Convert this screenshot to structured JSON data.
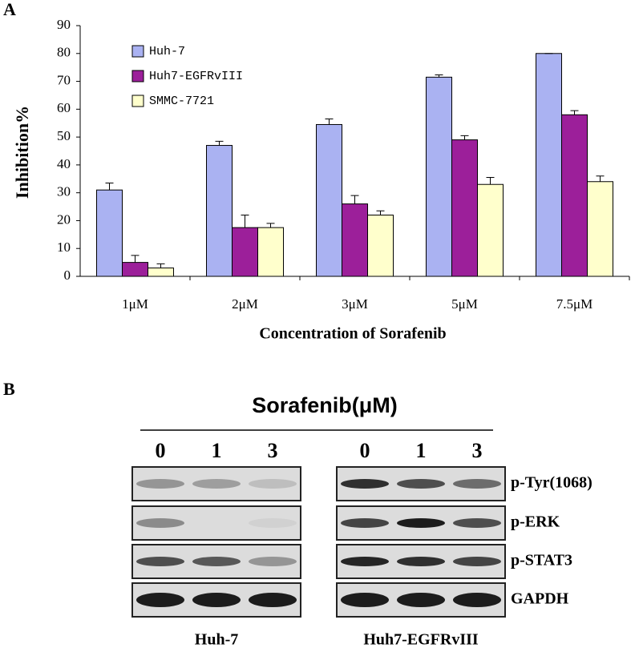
{
  "panel_labels": [
    "A",
    "B"
  ],
  "chart_data": {
    "type": "bar",
    "y_label": "Inhibition%",
    "x_label": "Concentration of Sorafenib",
    "categories": [
      "1μM",
      "2μM",
      "3μM",
      "5μM",
      "7.5μM"
    ],
    "series": [
      {
        "name": "Huh-7",
        "color": "#aab2f2",
        "values": [
          31,
          47,
          54.5,
          71.5,
          80
        ],
        "errors": [
          2.5,
          1.5,
          2,
          0.8,
          0
        ]
      },
      {
        "name": "Huh7-EGFRvIII",
        "color": "#9c1f9a",
        "values": [
          5,
          17.5,
          26,
          49,
          58
        ],
        "errors": [
          2.5,
          4.5,
          3,
          1.5,
          1.5
        ]
      },
      {
        "name": "SMMC-7721",
        "color": "#ffffcc",
        "values": [
          3,
          17.5,
          22,
          33,
          34
        ],
        "errors": [
          1.5,
          1.5,
          1.5,
          2.5,
          2
        ]
      }
    ],
    "ylim": [
      0,
      90
    ],
    "yticks": [
      0,
      10,
      20,
      30,
      40,
      50,
      60,
      70,
      80,
      90
    ],
    "legend": "upper left"
  },
  "blot": {
    "title": "Sorafenib(μM)",
    "lanes": [
      "0",
      "1",
      "3"
    ],
    "rows": [
      "p-Tyr(1068)",
      "p-ERK",
      "p-STAT3",
      "GAPDH"
    ],
    "groups": [
      "Huh-7",
      "Huh7-EGFRvIII"
    ]
  }
}
